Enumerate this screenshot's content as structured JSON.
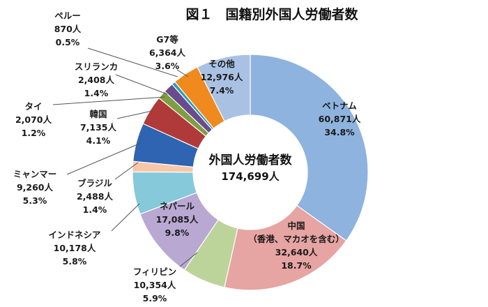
{
  "chart_data": {
    "type": "pie",
    "variant": "donut",
    "title": "図１　国籍別外国人労働者数",
    "center_label": "外国人労働者数",
    "center_value": "174,699人",
    "total": 174699,
    "slices": [
      {
        "name": "ベトナム",
        "value": 60871,
        "value_label": "60,871人",
        "percent": "34.8%",
        "color": "#8eb3de"
      },
      {
        "name": "中国\n（香港、マカオを含む）",
        "value": 32640,
        "value_label": "32,640人",
        "percent": "18.7%",
        "color": "#e6a4a2"
      },
      {
        "name": "フィリピン",
        "value": 10354,
        "value_label": "10,354人",
        "percent": "5.9%",
        "color": "#bcd49a"
      },
      {
        "name": "ネパール",
        "value": 17085,
        "value_label": "17,085人",
        "percent": "9.8%",
        "color": "#b9a8d2"
      },
      {
        "name": "インドネシア",
        "value": 10178,
        "value_label": "10,178人",
        "percent": "5.8%",
        "color": "#85c9da"
      },
      {
        "name": "ブラジル",
        "value": 2488,
        "value_label": "2,488人",
        "percent": "1.4%",
        "color": "#f7c7a8"
      },
      {
        "name": "ミャンマー",
        "value": 9260,
        "value_label": "9,260人",
        "percent": "5.3%",
        "color": "#2e64b1"
      },
      {
        "name": "韓国",
        "value": 7135,
        "value_label": "7,135人",
        "percent": "4.1%",
        "color": "#b03a3a"
      },
      {
        "name": "タイ",
        "value": 2070,
        "value_label": "2,070人",
        "percent": "1.2%",
        "color": "#7e9e42"
      },
      {
        "name": "スリランカ",
        "value": 2408,
        "value_label": "2,408人",
        "percent": "1.4%",
        "color": "#6a4c8e"
      },
      {
        "name": "ペルー",
        "value": 870,
        "value_label": "870人",
        "percent": "0.5%",
        "color": "#2f9fb8"
      },
      {
        "name": "G7等",
        "value": 6364,
        "value_label": "6,364人",
        "percent": "3.6%",
        "color": "#f08a1e"
      },
      {
        "name": "その他",
        "value": 12976,
        "value_label": "12,976人",
        "percent": "7.4%",
        "color": "#a9c2e4"
      }
    ]
  }
}
